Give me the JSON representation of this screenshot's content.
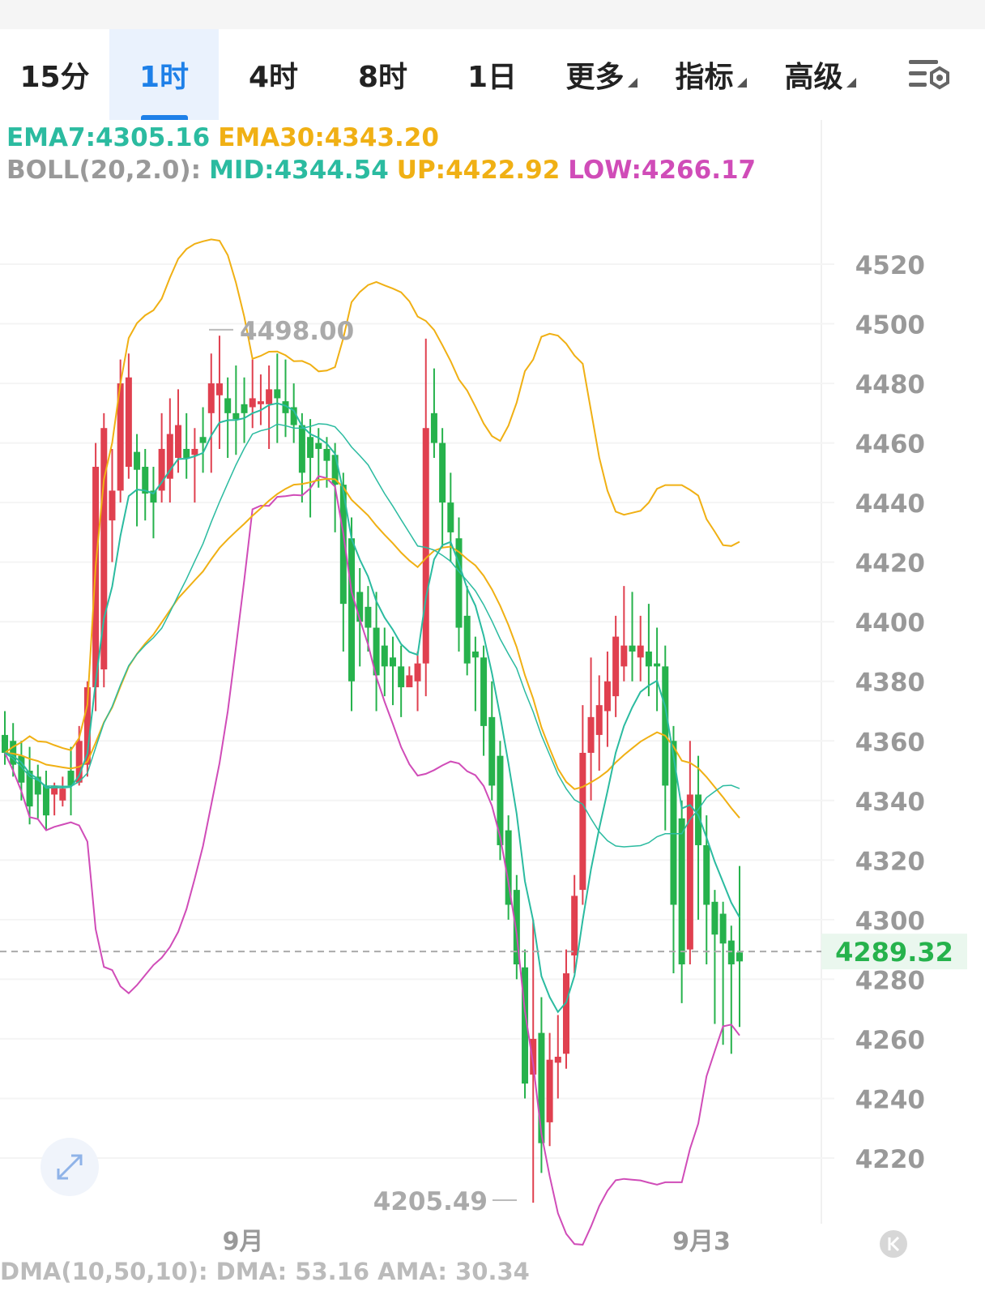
{
  "tabs": [
    {
      "label": "15分",
      "active": false,
      "dropdown": false
    },
    {
      "label": "1时",
      "active": true,
      "dropdown": false
    },
    {
      "label": "4时",
      "active": false,
      "dropdown": false
    },
    {
      "label": "8时",
      "active": false,
      "dropdown": false
    },
    {
      "label": "1日",
      "active": false,
      "dropdown": false
    },
    {
      "label": "更多",
      "active": false,
      "dropdown": true
    },
    {
      "label": "指标",
      "active": false,
      "dropdown": true
    },
    {
      "label": "高级",
      "active": false,
      "dropdown": true
    }
  ],
  "settings_icon": "chart-settings-icon",
  "indicators": {
    "ema7": "EMA7:4305.16",
    "ema30": "EMA30:4343.20",
    "boll_name": "BOLL(20,2.0):",
    "mid": "MID:4344.54",
    "up": "UP:4422.92",
    "low": "LOW:4266.17"
  },
  "colors": {
    "up_candle": "#e0404f",
    "down_candle": "#26b24c",
    "ema7": "#2bbba0",
    "ema30": "#f0b014",
    "boll_low": "#d04cb8",
    "price_tag": "#26b24c"
  },
  "current_price": "4289.32",
  "bottom_indicator": "DMA(10,50,10): DMA: 53.16 AMA: 30.34",
  "chart_data": {
    "type": "candlestick",
    "y_axis": {
      "ticks": [
        4520,
        4500,
        4480,
        4460,
        4440,
        4420,
        4400,
        4380,
        4360,
        4340,
        4320,
        4300,
        4280,
        4260,
        4240,
        4220
      ],
      "range": [
        4200,
        4540
      ]
    },
    "x_axis": {
      "labels": [
        "9月",
        "9月3"
      ]
    },
    "high_annotation": "4498.00",
    "low_annotation": "4205.49",
    "current_price": 4289.32,
    "ohlc": [
      [
        4362,
        4370,
        4352,
        4356
      ],
      [
        4360,
        4366,
        4348,
        4352
      ],
      [
        4355,
        4360,
        4340,
        4346
      ],
      [
        4350,
        4358,
        4332,
        4338
      ],
      [
        4348,
        4352,
        4334,
        4342
      ],
      [
        4345,
        4350,
        4330,
        4335
      ],
      [
        4342,
        4346,
        4335,
        4345
      ],
      [
        4340,
        4348,
        4338,
        4344
      ],
      [
        4350,
        4358,
        4335,
        4345
      ],
      [
        4346,
        4365,
        4345,
        4360
      ],
      [
        4352,
        4380,
        4348,
        4378
      ],
      [
        4378,
        4460,
        4370,
        4452
      ],
      [
        4384,
        4470,
        4378,
        4465
      ],
      [
        4434,
        4458,
        4420,
        4444
      ],
      [
        4444,
        4488,
        4440,
        4480
      ],
      [
        4452,
        4490,
        4448,
        4482
      ],
      [
        4457,
        4463,
        4432,
        4451
      ],
      [
        4452,
        4458,
        4434,
        4443
      ],
      [
        4444,
        4452,
        4428,
        4440
      ],
      [
        4444,
        4470,
        4440,
        4458
      ],
      [
        4448,
        4475,
        4440,
        4463
      ],
      [
        4455,
        4478,
        4450,
        4466
      ],
      [
        4458,
        4470,
        4448,
        4455
      ],
      [
        4456,
        4465,
        4440,
        4458
      ],
      [
        4462,
        4472,
        4450,
        4460
      ],
      [
        4470,
        4490,
        4450,
        4480
      ],
      [
        4476,
        4496,
        4458,
        4480
      ],
      [
        4475,
        4482,
        4455,
        4470
      ],
      [
        4470,
        4486,
        4456,
        4468
      ],
      [
        4473,
        4482,
        4460,
        4470
      ],
      [
        4472,
        4488,
        4465,
        4475
      ],
      [
        4473,
        4483,
        4466,
        4474
      ],
      [
        4473,
        4486,
        4458,
        4478
      ],
      [
        4478,
        4490,
        4460,
        4475
      ],
      [
        4474,
        4488,
        4462,
        4470
      ],
      [
        4472,
        4480,
        4460,
        4466
      ],
      [
        4466,
        4470,
        4440,
        4450
      ],
      [
        4462,
        4468,
        4435,
        4455
      ],
      [
        4460,
        4465,
        4445,
        4458
      ],
      [
        4458,
        4462,
        4445,
        4454
      ],
      [
        4456,
        4460,
        4430,
        4446
      ],
      [
        4446,
        4450,
        4390,
        4406
      ],
      [
        4428,
        4435,
        4370,
        4380
      ],
      [
        4410,
        4418,
        4385,
        4400
      ],
      [
        4405,
        4412,
        4390,
        4398
      ],
      [
        4398,
        4410,
        4370,
        4382
      ],
      [
        4392,
        4398,
        4375,
        4385
      ],
      [
        4388,
        4395,
        4372,
        4385
      ],
      [
        4385,
        4392,
        4368,
        4378
      ],
      [
        4378,
        4385,
        4380,
        4382
      ],
      [
        4380,
        4390,
        4370,
        4386
      ],
      [
        4386,
        4495,
        4375,
        4465
      ],
      [
        4470,
        4485,
        4455,
        4460
      ],
      [
        4460,
        4465,
        4425,
        4440
      ],
      [
        4440,
        4450,
        4420,
        4430
      ],
      [
        4428,
        4435,
        4390,
        4398
      ],
      [
        4402,
        4412,
        4382,
        4386
      ],
      [
        4390,
        4395,
        4370,
        4388
      ],
      [
        4388,
        4392,
        4355,
        4365
      ],
      [
        4368,
        4380,
        4340,
        4345
      ],
      [
        4355,
        4360,
        4320,
        4325
      ],
      [
        4330,
        4335,
        4300,
        4305
      ],
      [
        4310,
        4315,
        4280,
        4285
      ],
      [
        4284,
        4290,
        4240,
        4245
      ],
      [
        4248,
        4300,
        4205,
        4260
      ],
      [
        4262,
        4274,
        4215,
        4225
      ],
      [
        4232,
        4262,
        4224,
        4253
      ],
      [
        4252,
        4268,
        4240,
        4254
      ],
      [
        4255,
        4290,
        4250,
        4282
      ],
      [
        4288,
        4315,
        4282,
        4308
      ],
      [
        4310,
        4372,
        4305,
        4356
      ],
      [
        4356,
        4388,
        4340,
        4368
      ],
      [
        4362,
        4382,
        4350,
        4372
      ],
      [
        4370,
        4390,
        4358,
        4380
      ],
      [
        4375,
        4402,
        4368,
        4395
      ],
      [
        4385,
        4412,
        4380,
        4392
      ],
      [
        4392,
        4410,
        4380,
        4390
      ],
      [
        4388,
        4402,
        4380,
        4392
      ],
      [
        4390,
        4406,
        4375,
        4385
      ],
      [
        4386,
        4398,
        4370,
        4385
      ],
      [
        4385,
        4392,
        4330,
        4345
      ],
      [
        4360,
        4365,
        4282,
        4305
      ],
      [
        4334,
        4340,
        4272,
        4285
      ],
      [
        4290,
        4360,
        4285,
        4342
      ],
      [
        4342,
        4355,
        4300,
        4325
      ],
      [
        4325,
        4335,
        4285,
        4305
      ],
      [
        4306,
        4310,
        4265,
        4295
      ],
      [
        4302,
        4306,
        4258,
        4292
      ],
      [
        4293,
        4298,
        4255,
        4285
      ],
      [
        4289,
        4318,
        4264,
        4286
      ]
    ],
    "bands_description": "Bollinger upper/lower and EMA7/EMA30 overlays"
  }
}
